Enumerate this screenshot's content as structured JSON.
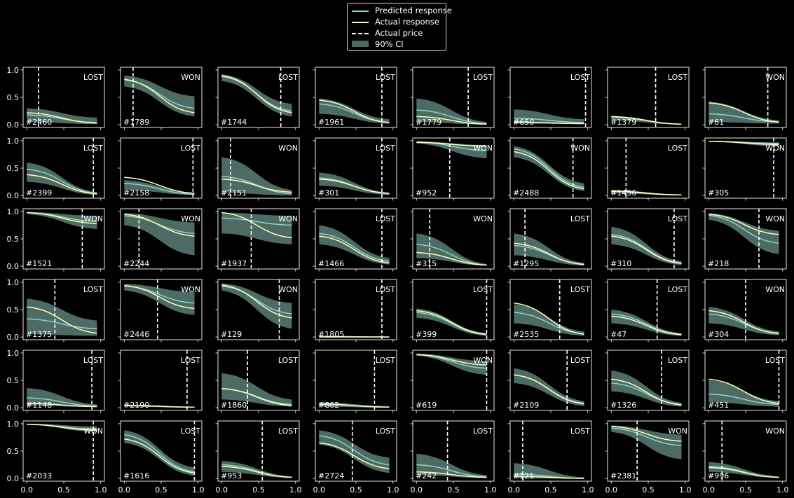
{
  "colors": {
    "background": "#000000",
    "predicted": "#8dd3c7",
    "actual": "#ffffb3",
    "price": "#ffffff",
    "ci": "#4d6b64",
    "axes": "#ffffff"
  },
  "legend": {
    "placement": "top-center",
    "items": [
      {
        "label": "Predicted response",
        "kind": "predicted"
      },
      {
        "label": "Actual response",
        "kind": "actual"
      },
      {
        "label": "Actual price",
        "kind": "price"
      },
      {
        "label": "90% CI",
        "kind": "ci"
      }
    ]
  },
  "chart_data": {
    "type": "line",
    "grid": false,
    "rows": 6,
    "cols": 8,
    "xlim": [
      0,
      1
    ],
    "ylim": [
      0,
      1
    ],
    "x_ticks": [
      "0.0",
      "0.5",
      "1.0"
    ],
    "y_ticks": [
      "0.0",
      "0.5",
      "1.0"
    ],
    "x_range": [
      0.0,
      0.95
    ],
    "panels": [
      {
        "id": "#2460",
        "outcome": "LOST",
        "price": 0.16,
        "predicted": [
          0.18,
          0.04
        ],
        "actual": [
          0.22,
          0.03
        ],
        "ci": [
          [
            0.05,
            0.3
          ],
          [
            0.01,
            0.13
          ]
        ]
      },
      {
        "id": "#1789",
        "outcome": "WON",
        "price": 0.12,
        "predicted": [
          0.82,
          0.3
        ],
        "actual": [
          0.83,
          0.22
        ],
        "ci": [
          [
            0.7,
            0.9
          ],
          [
            0.15,
            0.52
          ]
        ]
      },
      {
        "id": "#1744",
        "outcome": "LOST",
        "price": 0.8,
        "predicted": [
          0.88,
          0.25
        ],
        "actual": [
          0.9,
          0.22
        ],
        "ci": [
          [
            0.8,
            0.92
          ],
          [
            0.15,
            0.38
          ]
        ]
      },
      {
        "id": "#1961",
        "outcome": "LOST",
        "price": 0.85,
        "predicted": [
          0.38,
          0.04
        ],
        "actual": [
          0.45,
          0.04
        ],
        "ci": [
          [
            0.2,
            0.48
          ],
          [
            0.02,
            0.1
          ]
        ]
      },
      {
        "id": "#1779",
        "outcome": "LOST",
        "price": 0.7,
        "predicted": [
          0.27,
          0.02
        ],
        "actual": [
          0.15,
          0.01
        ],
        "ci": [
          [
            0.05,
            0.48
          ],
          [
            0.0,
            0.05
          ]
        ]
      },
      {
        "id": "#650",
        "outcome": "LOST",
        "price": 0.97,
        "predicted": [
          0.12,
          0.04
        ],
        "actual": [
          0.05,
          0.02
        ],
        "ci": [
          [
            0.02,
            0.28
          ],
          [
            0.01,
            0.1
          ]
        ]
      },
      {
        "id": "#1379",
        "outcome": "LOST",
        "price": 0.6,
        "predicted": [
          0.14,
          0.01
        ],
        "actual": [
          0.15,
          0.01
        ],
        "ci": [
          [
            0.08,
            0.16
          ],
          [
            0.0,
            0.02
          ]
        ]
      },
      {
        "id": "#61",
        "outcome": "WON",
        "price": 0.8,
        "predicted": [
          0.2,
          0.05
        ],
        "actual": [
          0.4,
          0.05
        ],
        "ci": [
          [
            0.05,
            0.42
          ],
          [
            0.02,
            0.08
          ]
        ]
      },
      {
        "id": "#2399",
        "outcome": "LOST",
        "price": 0.9,
        "predicted": [
          0.48,
          0.04
        ],
        "actual": [
          0.38,
          0.03
        ],
        "ci": [
          [
            0.25,
            0.6
          ],
          [
            0.01,
            0.06
          ]
        ]
      },
      {
        "id": "#2158",
        "outcome": "LOST",
        "price": 0.93,
        "predicted": [
          0.22,
          0.02
        ],
        "actual": [
          0.33,
          0.04
        ],
        "ci": [
          [
            0.1,
            0.28
          ],
          [
            0.01,
            0.05
          ]
        ]
      },
      {
        "id": "#2151",
        "outcome": "WON",
        "price": 0.12,
        "predicted": [
          0.35,
          0.03
        ],
        "actual": [
          0.3,
          0.06
        ],
        "ci": [
          [
            0.05,
            0.7
          ],
          [
            0.0,
            0.1
          ]
        ]
      },
      {
        "id": "#301",
        "outcome": "LOST",
        "price": 0.85,
        "predicted": [
          0.32,
          0.03
        ],
        "actual": [
          0.3,
          0.04
        ],
        "ci": [
          [
            0.18,
            0.42
          ],
          [
            0.01,
            0.05
          ]
        ]
      },
      {
        "id": "#952",
        "outcome": "WON",
        "price": 0.45,
        "predicted": [
          0.98,
          0.82
        ],
        "actual": [
          0.97,
          0.9
        ],
        "ci": [
          [
            0.95,
            0.99
          ],
          [
            0.68,
            0.92
          ]
        ]
      },
      {
        "id": "#2488",
        "outcome": "WON",
        "price": 0.8,
        "predicted": [
          0.85,
          0.15
        ],
        "actual": [
          0.8,
          0.12
        ],
        "ci": [
          [
            0.7,
            0.9
          ],
          [
            0.08,
            0.22
          ]
        ]
      },
      {
        "id": "#1456",
        "outcome": "LOST",
        "price": 0.2,
        "predicted": [
          0.07,
          0.01
        ],
        "actual": [
          0.08,
          0.01
        ],
        "ci": [
          [
            0.04,
            0.1
          ],
          [
            0.0,
            0.02
          ]
        ]
      },
      {
        "id": "#305",
        "outcome": "WON",
        "price": 0.88,
        "predicted": [
          0.99,
          0.95
        ],
        "actual": [
          0.99,
          0.93
        ],
        "ci": [
          [
            0.98,
            1.0
          ],
          [
            0.9,
            0.97
          ]
        ]
      },
      {
        "id": "#1521",
        "outcome": "WON",
        "price": 0.75,
        "predicted": [
          0.98,
          0.82
        ],
        "actual": [
          0.98,
          0.78
        ],
        "ci": [
          [
            0.95,
            0.99
          ],
          [
            0.68,
            0.92
          ]
        ]
      },
      {
        "id": "#2244",
        "outcome": "WON",
        "price": 0.2,
        "predicted": [
          0.92,
          0.6
        ],
        "actual": [
          0.95,
          0.55
        ],
        "ci": [
          [
            0.75,
            0.97
          ],
          [
            0.2,
            0.8
          ]
        ]
      },
      {
        "id": "#1937",
        "outcome": "WON",
        "price": 0.4,
        "predicted": [
          0.88,
          0.75
        ],
        "actual": [
          0.98,
          0.52
        ],
        "ci": [
          [
            0.6,
            0.98
          ],
          [
            0.4,
            0.92
          ]
        ]
      },
      {
        "id": "#1466",
        "outcome": "LOST",
        "price": 0.85,
        "predicted": [
          0.6,
          0.09
        ],
        "actual": [
          0.55,
          0.06
        ],
        "ci": [
          [
            0.4,
            0.75
          ],
          [
            0.03,
            0.15
          ]
        ]
      },
      {
        "id": "#315",
        "outcome": "WON",
        "price": 0.18,
        "predicted": [
          0.4,
          0.02
        ],
        "actual": [
          0.25,
          0.02
        ],
        "ci": [
          [
            0.15,
            0.6
          ],
          [
            0.01,
            0.04
          ]
        ]
      },
      {
        "id": "#1295",
        "outcome": "LOST",
        "price": 0.15,
        "predicted": [
          0.38,
          0.04
        ],
        "actual": [
          0.42,
          0.03
        ],
        "ci": [
          [
            0.2,
            0.6
          ],
          [
            0.01,
            0.06
          ]
        ]
      },
      {
        "id": "#310",
        "outcome": "LOST",
        "price": 0.85,
        "predicted": [
          0.58,
          0.06
        ],
        "actual": [
          0.55,
          0.05
        ],
        "ci": [
          [
            0.4,
            0.72
          ],
          [
            0.02,
            0.09
          ]
        ]
      },
      {
        "id": "#218",
        "outcome": "WON",
        "price": 0.68,
        "predicted": [
          0.93,
          0.42
        ],
        "actual": [
          0.95,
          0.58
        ],
        "ci": [
          [
            0.85,
            0.97
          ],
          [
            0.22,
            0.65
          ]
        ]
      },
      {
        "id": "#1375",
        "outcome": "LOST",
        "price": 0.38,
        "predicted": [
          0.33,
          0.15
        ],
        "actual": [
          0.55,
          0.07
        ],
        "ci": [
          [
            0.05,
            0.7
          ],
          [
            0.02,
            0.3
          ]
        ]
      },
      {
        "id": "#2446",
        "outcome": "WON",
        "price": 0.45,
        "predicted": [
          0.93,
          0.62
        ],
        "actual": [
          0.94,
          0.52
        ],
        "ci": [
          [
            0.85,
            0.97
          ],
          [
            0.4,
            0.82
          ]
        ]
      },
      {
        "id": "#129",
        "outcome": "WON",
        "price": 0.78,
        "predicted": [
          0.93,
          0.42
        ],
        "actual": [
          0.95,
          0.35
        ],
        "ci": [
          [
            0.85,
            0.98
          ],
          [
            0.15,
            0.62
          ]
        ]
      },
      {
        "id": "#1805",
        "outcome": "LOST",
        "price": 0.85,
        "predicted": [
          0.01,
          0.0
        ],
        "actual": [
          0.0,
          0.0
        ],
        "ci": [
          [
            0.0,
            0.02
          ],
          [
            0.0,
            0.01
          ]
        ]
      },
      {
        "id": "#399",
        "outcome": "LOST",
        "price": 0.95,
        "predicted": [
          0.45,
          0.04
        ],
        "actual": [
          0.48,
          0.05
        ],
        "ci": [
          [
            0.35,
            0.52
          ],
          [
            0.02,
            0.07
          ]
        ]
      },
      {
        "id": "#2535",
        "outcome": "LOST",
        "price": 0.62,
        "predicted": [
          0.45,
          0.06
        ],
        "actual": [
          0.62,
          0.05
        ],
        "ci": [
          [
            0.25,
            0.6
          ],
          [
            0.02,
            0.1
          ]
        ]
      },
      {
        "id": "#47",
        "outcome": "LOST",
        "price": 0.62,
        "predicted": [
          0.42,
          0.05
        ],
        "actual": [
          0.38,
          0.04
        ],
        "ci": [
          [
            0.25,
            0.5
          ],
          [
            0.02,
            0.07
          ]
        ]
      },
      {
        "id": "#304",
        "outcome": "WON",
        "price": 0.5,
        "predicted": [
          0.42,
          0.07
        ],
        "actual": [
          0.48,
          0.06
        ],
        "ci": [
          [
            0.25,
            0.55
          ],
          [
            0.03,
            0.1
          ]
        ]
      },
      {
        "id": "#1148",
        "outcome": "LOST",
        "price": 0.88,
        "predicted": [
          0.18,
          0.03
        ],
        "actual": [
          0.08,
          0.02
        ],
        "ci": [
          [
            0.04,
            0.36
          ],
          [
            0.01,
            0.06
          ]
        ]
      },
      {
        "id": "#2190",
        "outcome": "LOST",
        "price": 0.85,
        "predicted": [
          0.04,
          0.01
        ],
        "actual": [
          0.04,
          0.01
        ],
        "ci": [
          [
            0.02,
            0.06
          ],
          [
            0.0,
            0.02
          ]
        ]
      },
      {
        "id": "#1860",
        "outcome": "LOST",
        "price": 0.35,
        "predicted": [
          0.35,
          0.06
        ],
        "actual": [
          0.35,
          0.04
        ],
        "ci": [
          [
            0.15,
            0.63
          ],
          [
            0.02,
            0.15
          ]
        ]
      },
      {
        "id": "#862",
        "outcome": "LOST",
        "price": 0.75,
        "predicted": [
          0.06,
          0.01
        ],
        "actual": [
          0.07,
          0.01
        ],
        "ci": [
          [
            0.02,
            0.1
          ],
          [
            0.0,
            0.03
          ]
        ]
      },
      {
        "id": "#619",
        "outcome": "WON",
        "price": 0.95,
        "predicted": [
          0.97,
          0.72
        ],
        "actual": [
          0.97,
          0.78
        ],
        "ci": [
          [
            0.95,
            0.99
          ],
          [
            0.6,
            0.85
          ]
        ]
      },
      {
        "id": "#2109",
        "outcome": "LOST",
        "price": 0.72,
        "predicted": [
          0.6,
          0.08
        ],
        "actual": [
          0.6,
          0.07
        ],
        "ci": [
          [
            0.45,
            0.72
          ],
          [
            0.03,
            0.12
          ]
        ]
      },
      {
        "id": "#1326",
        "outcome": "LOST",
        "price": 0.68,
        "predicted": [
          0.45,
          0.06
        ],
        "actual": [
          0.52,
          0.05
        ],
        "ci": [
          [
            0.3,
            0.68
          ],
          [
            0.02,
            0.09
          ]
        ]
      },
      {
        "id": "#451",
        "outcome": "LOST",
        "price": 0.95,
        "predicted": [
          0.25,
          0.06
        ],
        "actual": [
          0.52,
          0.08
        ],
        "ci": [
          [
            0.1,
            0.5
          ],
          [
            0.02,
            0.12
          ]
        ]
      },
      {
        "id": "#2033",
        "outcome": "WON",
        "price": 0.9,
        "predicted": [
          0.99,
          0.9
        ],
        "actual": [
          0.99,
          0.88
        ],
        "ci": [
          [
            0.98,
            1.0
          ],
          [
            0.85,
            0.95
          ]
        ]
      },
      {
        "id": "#1616",
        "outcome": "LOST",
        "price": 0.95,
        "predicted": [
          0.8,
          0.12
        ],
        "actual": [
          0.72,
          0.1
        ],
        "ci": [
          [
            0.65,
            0.88
          ],
          [
            0.05,
            0.2
          ]
        ]
      },
      {
        "id": "#953",
        "outcome": "LOST",
        "price": 0.55,
        "predicted": [
          0.25,
          0.02
        ],
        "actual": [
          0.22,
          0.02
        ],
        "ci": [
          [
            0.12,
            0.32
          ],
          [
            0.01,
            0.04
          ]
        ]
      },
      {
        "id": "#2724",
        "outcome": "LOST",
        "price": 0.45,
        "predicted": [
          0.78,
          0.25
        ],
        "actual": [
          0.65,
          0.18
        ],
        "ci": [
          [
            0.62,
            0.88
          ],
          [
            0.1,
            0.38
          ]
        ]
      },
      {
        "id": "#242",
        "outcome": "LOST",
        "price": 0.42,
        "predicted": [
          0.25,
          0.03
        ],
        "actual": [
          0.12,
          0.02
        ],
        "ci": [
          [
            0.06,
            0.45
          ],
          [
            0.01,
            0.06
          ]
        ]
      },
      {
        "id": "#121",
        "outcome": "LOST",
        "price": 0.12,
        "predicted": [
          0.08,
          0.0
        ],
        "actual": [
          0.04,
          0.0
        ],
        "ci": [
          [
            0.0,
            0.28
          ],
          [
            0.0,
            0.02
          ]
        ]
      },
      {
        "id": "#2381",
        "outcome": "WON",
        "price": 0.35,
        "predicted": [
          0.92,
          0.6
        ],
        "actual": [
          0.95,
          0.68
        ],
        "ci": [
          [
            0.85,
            0.97
          ],
          [
            0.35,
            0.8
          ]
        ]
      },
      {
        "id": "#996",
        "outcome": "WON",
        "price": 0.18,
        "predicted": [
          0.22,
          0.02
        ],
        "actual": [
          0.2,
          0.02
        ],
        "ci": [
          [
            0.12,
            0.3
          ],
          [
            0.01,
            0.04
          ]
        ]
      }
    ]
  }
}
